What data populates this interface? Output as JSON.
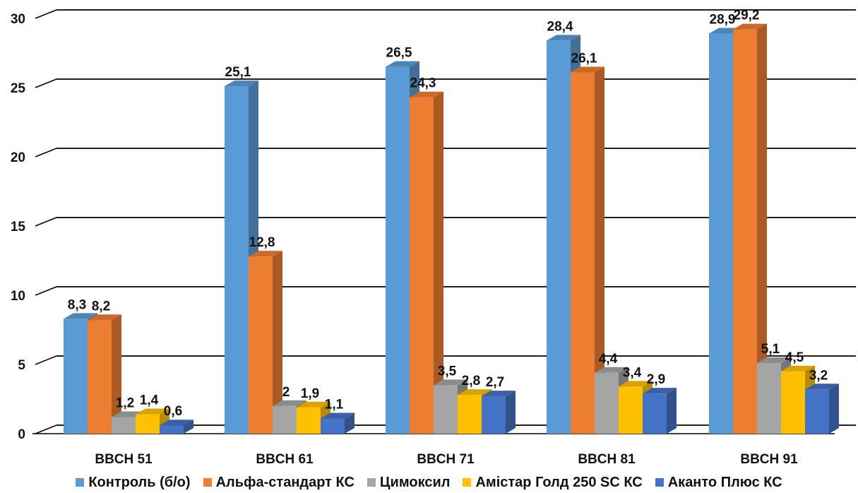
{
  "chart_data": {
    "type": "bar",
    "categories": [
      "BBCH 51",
      "BBCH 61",
      "BBCH 71",
      "BBCH 81",
      "BBCH 91"
    ],
    "series": [
      {
        "name": "Контроль (б/о)",
        "color": "#5B9BD5",
        "values": [
          8.3,
          25.1,
          26.5,
          28.4,
          28.9
        ],
        "labels": [
          "8,3",
          "25,1",
          "26,5",
          "28,4",
          "28,9"
        ]
      },
      {
        "name": "Альфа-стандарт КС",
        "color": "#ED7D31",
        "values": [
          8.2,
          12.8,
          24.3,
          26.1,
          29.2
        ],
        "labels": [
          "8,2",
          "12,8",
          "24,3",
          "26,1",
          "29,2"
        ]
      },
      {
        "name": "Цимоксил",
        "color": "#A5A5A5",
        "values": [
          1.2,
          2,
          3.5,
          4.4,
          5.1
        ],
        "labels": [
          "1,2",
          "2",
          "3,5",
          "4,4",
          "5,1"
        ]
      },
      {
        "name": "Амістар  Голд 250  SC КС",
        "color": "#FFC000",
        "values": [
          1.4,
          1.9,
          2.8,
          3.4,
          4.5
        ],
        "labels": [
          "1,4",
          "1,9",
          "2,8",
          "3,4",
          "4,5"
        ]
      },
      {
        "name": "Аканто  Плюс КС",
        "color": "#4472C4",
        "values": [
          0.6,
          1.1,
          2.7,
          2.9,
          3.2
        ],
        "labels": [
          "0,6",
          "1,1",
          "2,7",
          "2,9",
          "3,2"
        ]
      }
    ],
    "yticks": [
      "0",
      "5",
      "10",
      "15",
      "20",
      "25",
      "30"
    ],
    "ylim": [
      0,
      30
    ],
    "grid": true,
    "legend_position": "bottom",
    "style": "3d-clustered"
  }
}
